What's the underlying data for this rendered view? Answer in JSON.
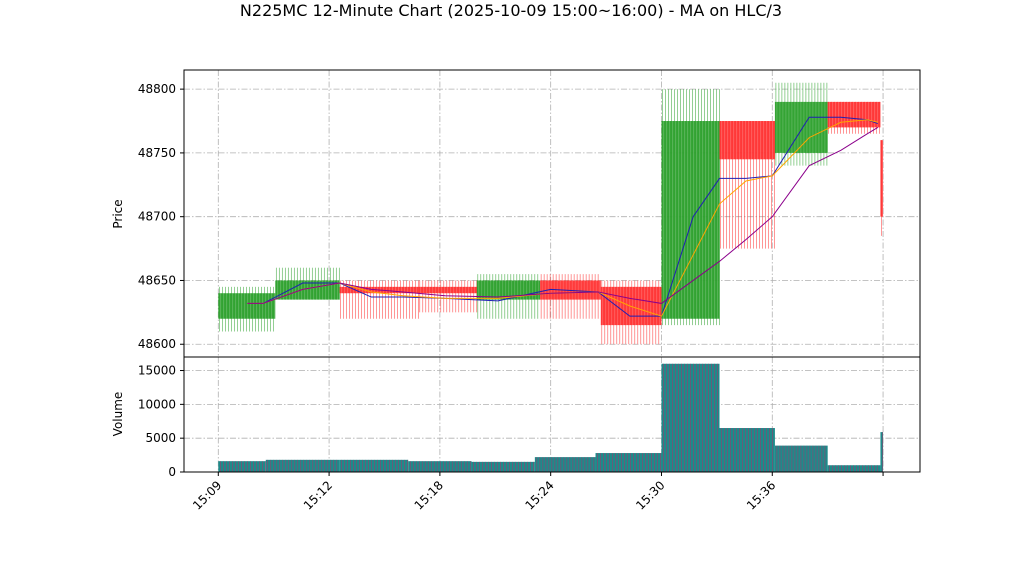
{
  "title": "N225MC 12-Minute Chart (2025-10-09 15:00~16:00) - MA on HLC/3",
  "colors": {
    "up": "#2ca02c",
    "down": "#ff3333",
    "volume": "#1f8a8a",
    "volume_edge": "#b0306a",
    "ma_fast": "#1f1fb4",
    "ma_mid": "#ffa500",
    "ma_slow": "#8b008b",
    "grid": "#b0b0b0"
  },
  "chart_data": [
    {
      "type": "candlestick",
      "panel": "price",
      "ylabel": "Price",
      "ylim": [
        48590,
        48815
      ],
      "yticks": [
        48600,
        48650,
        48700,
        48750,
        48800
      ],
      "grid": true,
      "candles": [
        {
          "start": 0.0,
          "end": 1.08,
          "open": 48620,
          "high": 48645,
          "low": 48610,
          "close": 48640
        },
        {
          "start": 1.08,
          "end": 2.3,
          "open": 48635,
          "high": 48660,
          "low": 48635,
          "close": 48650
        },
        {
          "start": 2.3,
          "end": 3.8,
          "open": 48645,
          "high": 48650,
          "low": 48620,
          "close": 48640
        },
        {
          "start": 3.8,
          "end": 4.9,
          "open": 48645,
          "high": 48650,
          "low": 48625,
          "close": 48640
        },
        {
          "start": 4.9,
          "end": 6.1,
          "open": 48635,
          "high": 48655,
          "low": 48620,
          "close": 48650
        },
        {
          "start": 6.1,
          "end": 7.25,
          "open": 48650,
          "high": 48655,
          "low": 48620,
          "close": 48635
        },
        {
          "start": 7.25,
          "end": 8.4,
          "open": 48645,
          "high": 48650,
          "low": 48600,
          "close": 48615
        },
        {
          "start": 8.4,
          "end": 9.5,
          "open": 48620,
          "high": 48800,
          "low": 48615,
          "close": 48775
        },
        {
          "start": 9.5,
          "end": 10.55,
          "open": 48775,
          "high": 48775,
          "low": 48675,
          "close": 48745
        },
        {
          "start": 10.55,
          "end": 11.55,
          "open": 48750,
          "high": 48805,
          "low": 48740,
          "close": 48790
        },
        {
          "start": 11.55,
          "end": 12.55,
          "open": 48790,
          "high": 48790,
          "low": 48765,
          "close": 48770
        },
        {
          "start": 12.55,
          "end": 12.6,
          "open": 48760,
          "high": 48760,
          "low": 48685,
          "close": 48700
        }
      ],
      "ma_lines": [
        {
          "key": "ma_fast",
          "x": [
            0.55,
            0.85,
            1.6,
            2.3,
            2.9,
            3.5,
            4.3,
            5.3,
            6.3,
            7.2,
            7.8,
            8.4,
            9.0,
            9.5,
            10.0,
            10.5,
            11.2,
            11.8,
            12.3,
            12.5
          ],
          "y": [
            48632,
            48632,
            48648,
            48648,
            48637,
            48637,
            48636,
            48634,
            48643,
            48641,
            48622,
            48622,
            48700,
            48730,
            48730,
            48732,
            48778,
            48778,
            48776,
            48773
          ]
        },
        {
          "key": "ma_mid",
          "x": [
            0.55,
            0.85,
            1.6,
            2.3,
            2.9,
            3.5,
            4.3,
            5.3,
            6.3,
            7.2,
            7.8,
            8.4,
            9.0,
            9.5,
            10.0,
            10.5,
            11.2,
            11.8,
            12.3,
            12.5
          ],
          "y": [
            48632,
            48632,
            48643,
            48648,
            48641,
            48638,
            48636,
            48636,
            48640,
            48641,
            48630,
            48622,
            48670,
            48710,
            48728,
            48732,
            48762,
            48774,
            48776,
            48774
          ]
        },
        {
          "key": "ma_slow",
          "x": [
            0.55,
            0.85,
            1.6,
            2.3,
            2.9,
            3.5,
            4.3,
            5.3,
            6.3,
            7.2,
            7.8,
            8.4,
            9.0,
            9.5,
            10.0,
            10.5,
            11.2,
            11.8,
            12.3,
            12.5
          ],
          "y": [
            48632,
            48632,
            48643,
            48648,
            48643,
            48641,
            48638,
            48637,
            48640,
            48641,
            48636,
            48632,
            48650,
            48665,
            48682,
            48700,
            48740,
            48752,
            48765,
            48770
          ]
        }
      ]
    },
    {
      "type": "bar",
      "panel": "volume",
      "ylabel": "Volume",
      "ylim": [
        0,
        17000
      ],
      "yticks": [
        0,
        5000,
        10000,
        15000
      ],
      "grid": true,
      "bars": [
        {
          "start": 0.0,
          "end": 0.9,
          "value": 1600
        },
        {
          "start": 0.9,
          "end": 2.3,
          "value": 1800
        },
        {
          "start": 2.3,
          "end": 3.6,
          "value": 1800
        },
        {
          "start": 3.6,
          "end": 4.8,
          "value": 1600
        },
        {
          "start": 4.8,
          "end": 6.0,
          "value": 1500
        },
        {
          "start": 6.0,
          "end": 7.15,
          "value": 2200
        },
        {
          "start": 7.15,
          "end": 8.4,
          "value": 2800
        },
        {
          "start": 8.4,
          "end": 9.5,
          "value": 16000
        },
        {
          "start": 9.5,
          "end": 10.55,
          "value": 6500
        },
        {
          "start": 10.55,
          "end": 11.55,
          "value": 3900
        },
        {
          "start": 11.55,
          "end": 12.55,
          "value": 1000
        },
        {
          "start": 12.55,
          "end": 12.6,
          "value": 5900
        }
      ]
    }
  ],
  "x_axis": {
    "ticks": [
      {
        "pos": 0,
        "label": "15:09"
      },
      {
        "pos": 2.1,
        "label": "15:12"
      },
      {
        "pos": 4.2,
        "label": "15:18"
      },
      {
        "pos": 6.3,
        "label": "15:24"
      },
      {
        "pos": 8.4,
        "label": "15:30"
      },
      {
        "pos": 10.5,
        "label": "15:36"
      },
      {
        "pos": 12.6,
        "label": null
      }
    ],
    "xlim": [
      -0.65,
      13.3
    ]
  }
}
